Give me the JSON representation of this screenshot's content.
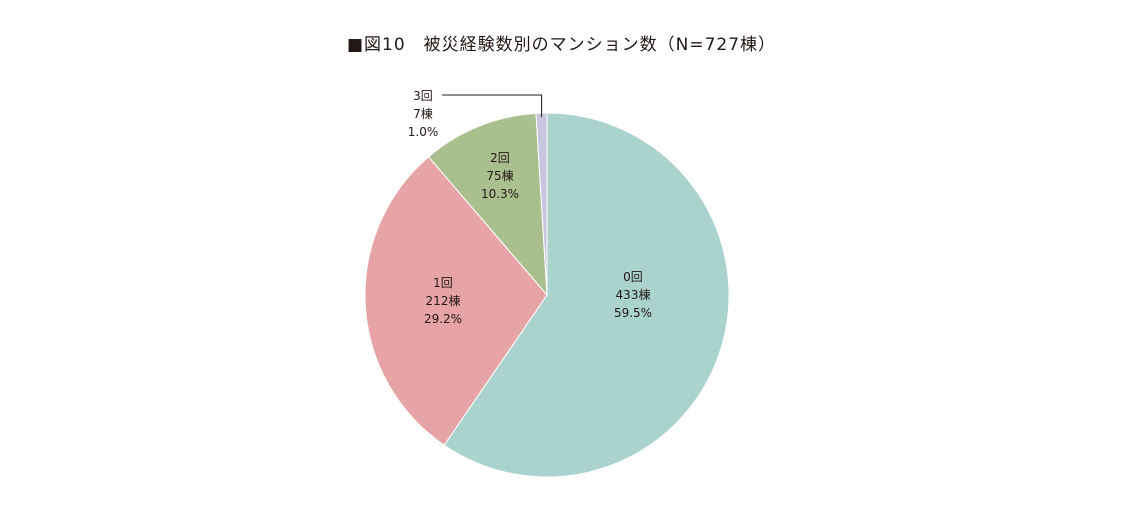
{
  "chart_data": {
    "type": "pie",
    "title": "■図10　被災経験数別のマンション数（N=727棟）",
    "start_angle_deg": 0,
    "direction": "clockwise",
    "slices": [
      {
        "label": "0回",
        "count_label": "433棟",
        "percent_label": "59.5%",
        "value": 433,
        "color": "#aad3cd"
      },
      {
        "label": "1回",
        "count_label": "212棟",
        "percent_label": "29.2%",
        "value": 212,
        "color": "#e6a4a6"
      },
      {
        "label": "2回",
        "count_label": "75棟",
        "percent_label": "10.3%",
        "value": 75,
        "color": "#aabf8e"
      },
      {
        "label": "3回",
        "count_label": "7棟",
        "percent_label": "1.0%",
        "value": 7,
        "color": "#c8c6df"
      }
    ],
    "total": 727
  }
}
